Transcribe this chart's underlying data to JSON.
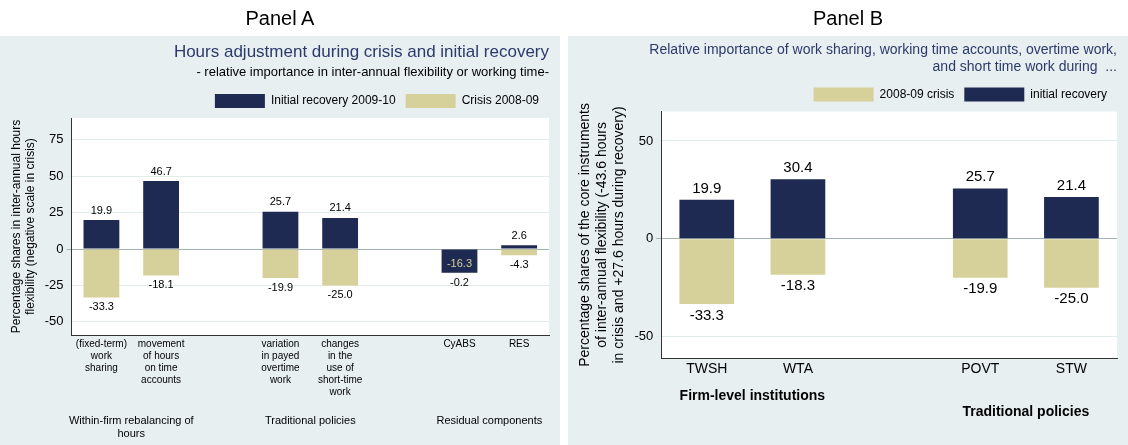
{
  "chart_data": [
    {
      "type": "bar",
      "title": "Hours adjustment during crisis and initial recovery",
      "subtitle": "- relative importance in inter-annual flexibility or working time-",
      "ylabel": "Percentage shares in inter-annual hours flexibility (negative scale in crisis)",
      "categories": [
        "(fixed-term)\nwork\nsharing",
        "movement\nof hours\non time\naccounts",
        null,
        "variation\nin payed\novertime\nwork",
        "changes\nin the\nuse of\nshort-time\nwork",
        null,
        "CyABS",
        "RES"
      ],
      "stacked": true,
      "series": [
        {
          "name": "Initial recovery 2009-10",
          "color": "#1f2a52",
          "values": [
            19.9,
            46.7,
            null,
            25.7,
            21.4,
            null,
            -16.3,
            2.6
          ],
          "value_labels": [
            "19.9",
            "46.7",
            null,
            "25.7",
            "21.4",
            null,
            "-16.3",
            "2.6"
          ]
        },
        {
          "name": "Crisis 2008-09",
          "color": "#d6d09b",
          "values": [
            -33.3,
            -18.1,
            null,
            -19.9,
            -25.0,
            null,
            -0.2,
            -4.3
          ],
          "value_labels": [
            "-33.3",
            "-18.1",
            null,
            "-19.9",
            "-25.0",
            null,
            "-0.2",
            "-4.3"
          ]
        }
      ],
      "ylim": [
        -59,
        90
      ],
      "yticks": [
        -50,
        -25,
        0,
        25,
        50,
        75
      ],
      "grid": "y",
      "legend": "top right",
      "annotations": [
        "Panel A",
        "Within-firm rebalancing of hours",
        "Traditional policies",
        "Residual components"
      ]
    },
    {
      "type": "bar",
      "title": "Relative importance of work sharing, working time accounts, overtime work, and short time work during  ...",
      "ylabel": "Percentage shares of the core instruments of inter-annual flexibility (-43.6 hours in crisis and +27.6 hours during recovery)",
      "categories": [
        "TWSH",
        "WTA",
        null,
        "POVT",
        "STW"
      ],
      "stacked": true,
      "series": [
        {
          "name": "2008-09 crisis",
          "color": "#d6d09b",
          "values": [
            -33.3,
            -18.3,
            null,
            -19.9,
            -25.0
          ],
          "value_labels": [
            "-33.3",
            "-18.3",
            null,
            "-19.9",
            "-25.0"
          ]
        },
        {
          "name": "initial recovery",
          "color": "#1f2a52",
          "values": [
            19.9,
            30.4,
            null,
            25.7,
            21.4
          ],
          "value_labels": [
            "19.9",
            "30.4",
            null,
            "25.7",
            "21.4"
          ]
        }
      ],
      "ylim": [
        -61,
        65
      ],
      "yticks": [
        -50,
        0,
        50
      ],
      "grid": "y",
      "legend": "top right",
      "annotations": [
        "Panel B",
        "Firm-level institutions",
        "Traditional policies"
      ]
    }
  ]
}
